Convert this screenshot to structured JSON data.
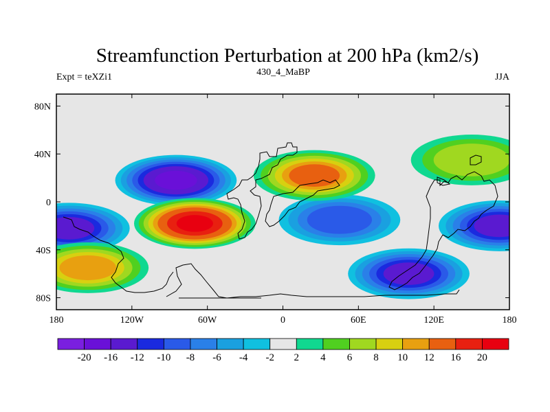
{
  "chart_data": {
    "type": "contour-map",
    "title": "Streamfunction Perturbation at 200 hPa (km2/s)",
    "subtitle_left": "Expt = teXZi1",
    "subtitle_center": "430_4_MaBP",
    "subtitle_right": "JJA",
    "x_ticks": [
      {
        "value": -180,
        "label": "180"
      },
      {
        "value": -120,
        "label": "120W"
      },
      {
        "value": -60,
        "label": "60W"
      },
      {
        "value": 0,
        "label": "0"
      },
      {
        "value": 60,
        "label": "60E"
      },
      {
        "value": 120,
        "label": "120E"
      },
      {
        "value": 180,
        "label": "180"
      }
    ],
    "y_ticks": [
      {
        "value": 80,
        "label": "80N"
      },
      {
        "value": 40,
        "label": "40N"
      },
      {
        "value": 0,
        "label": "0"
      },
      {
        "value": -40,
        "label": "40S"
      },
      {
        "value": -80,
        "label": "80S"
      }
    ],
    "xlim": [
      -180,
      180
    ],
    "ylim": [
      -90,
      90
    ],
    "colorbar": {
      "colors": [
        "#7a1fe0",
        "#6a10d8",
        "#5a1ad0",
        "#1a2adf",
        "#2a5ae8",
        "#2a80e8",
        "#1aa0e0",
        "#10c0e0",
        "#e6e6e6",
        "#10d890",
        "#50d020",
        "#a0d820",
        "#d8d010",
        "#e8a010",
        "#e86010",
        "#e82010",
        "#e80010"
      ],
      "labels": [
        "-20",
        "-16",
        "-12",
        "-10",
        "-8",
        "-6",
        "-4",
        "-2",
        "2",
        "4",
        "6",
        "8",
        "10",
        "12",
        "16",
        "20"
      ]
    },
    "features": [
      {
        "lon": -85,
        "lat": 18,
        "value": -18
      },
      {
        "lon": -170,
        "lat": -22,
        "value": -15
      },
      {
        "lon": 172,
        "lat": -20,
        "value": -12
      },
      {
        "lon": 45,
        "lat": -15,
        "value": -9
      },
      {
        "lon": 100,
        "lat": -60,
        "value": -12
      },
      {
        "lon": -70,
        "lat": -18,
        "value": 20
      },
      {
        "lon": 25,
        "lat": 22,
        "value": 12
      },
      {
        "lon": -155,
        "lat": -55,
        "value": 10
      },
      {
        "lon": 150,
        "lat": 35,
        "value": 6
      }
    ]
  }
}
